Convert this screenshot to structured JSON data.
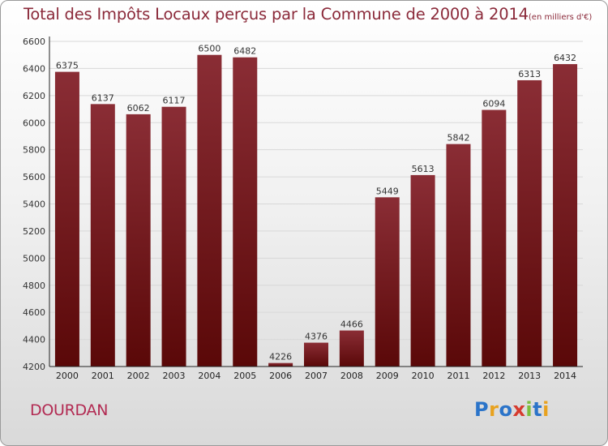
{
  "title": "Total des Impôts Locaux perçus par la Commune de 2000 à 2014",
  "unit": "(en milliers d'€)",
  "commune": "DOURDAN",
  "logo": {
    "letters": [
      "P",
      "r",
      "o",
      "x",
      "i",
      "t",
      "i"
    ],
    "colors": [
      "#2b74c9",
      "#e8a21f",
      "#2b74c9",
      "#d63b2e",
      "#7cbf3c",
      "#2b74c9",
      "#e8a21f"
    ]
  },
  "colors": {
    "bar_top": "#8a2d35",
    "bar_bottom": "#5a0808",
    "grid": "#d8d8d8",
    "axis": "#222222",
    "title": "#8b2a3a"
  },
  "chart_data": {
    "type": "bar",
    "title": "Total des Impôts Locaux perçus par la Commune de 2000 à 2014",
    "categories": [
      "2000",
      "2001",
      "2002",
      "2003",
      "2004",
      "2005",
      "2006",
      "2007",
      "2008",
      "2009",
      "2010",
      "2011",
      "2012",
      "2013",
      "2014"
    ],
    "values": [
      6375,
      6137,
      6062,
      6117,
      6500,
      6482,
      4226,
      4376,
      4466,
      5449,
      5613,
      5842,
      6094,
      6313,
      6432
    ],
    "ylim": [
      4200,
      6600
    ],
    "yticks": [
      4200,
      4400,
      4600,
      4800,
      5000,
      5200,
      5400,
      5600,
      5800,
      6000,
      6200,
      6400,
      6600
    ],
    "xlabel": "",
    "ylabel": "",
    "grid": true
  }
}
